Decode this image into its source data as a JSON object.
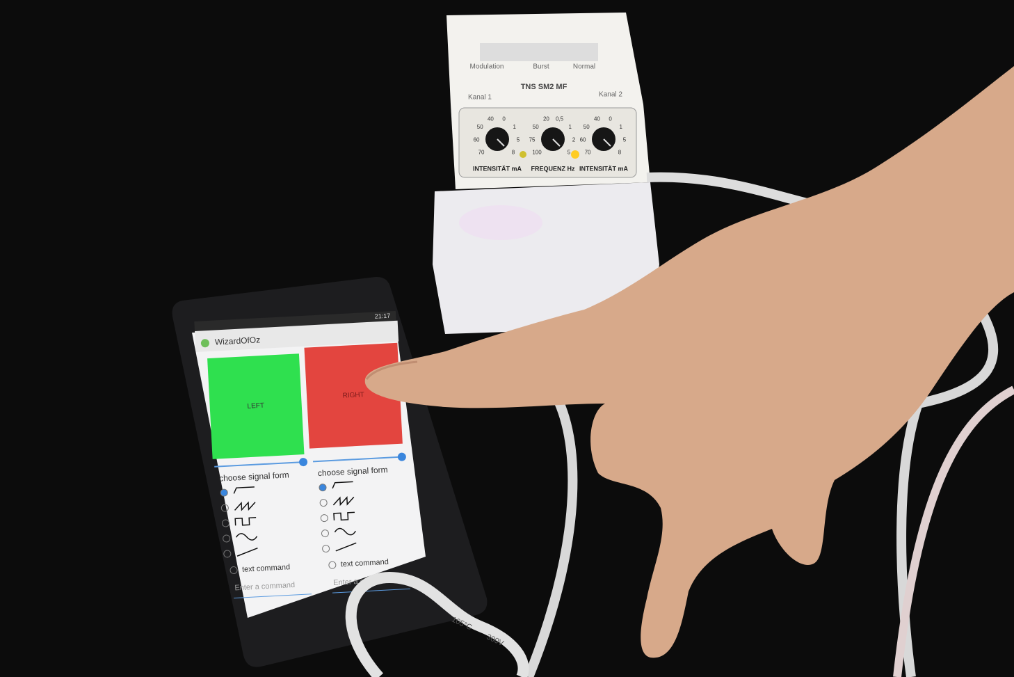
{
  "device": {
    "switch_labels": [
      "Modulation",
      "Burst",
      "Normal"
    ],
    "channel_labels": [
      "Kanal 1",
      "Kanal 2"
    ],
    "model": "TNS SM2 MF",
    "knob_scales": [
      [
        "70",
        "60",
        "50",
        "40",
        "0",
        "1",
        "5",
        "8"
      ],
      [
        "100",
        "75",
        "50",
        "20",
        "0,5",
        "1",
        "2",
        "5"
      ],
      [
        "70",
        "60",
        "50",
        "40",
        "0",
        "1",
        "5",
        "8"
      ]
    ],
    "knob_labels": [
      "INTENSITÄT mA",
      "FREQUENZ Hz",
      "INTENSITÄT mA"
    ]
  },
  "phone": {
    "status_time": "21:17",
    "app_title": "WizardOfOz",
    "buttons": [
      "LEFT",
      "RIGHT"
    ],
    "panels": [
      {
        "heading": "choose signal form",
        "option": "text command",
        "placeholder": "Enter a command"
      },
      {
        "heading": "choose signal form",
        "option": "text command",
        "placeholder": "Enter a command"
      }
    ]
  },
  "cable": {
    "labels": [
      "105°C",
      "300V"
    ]
  }
}
